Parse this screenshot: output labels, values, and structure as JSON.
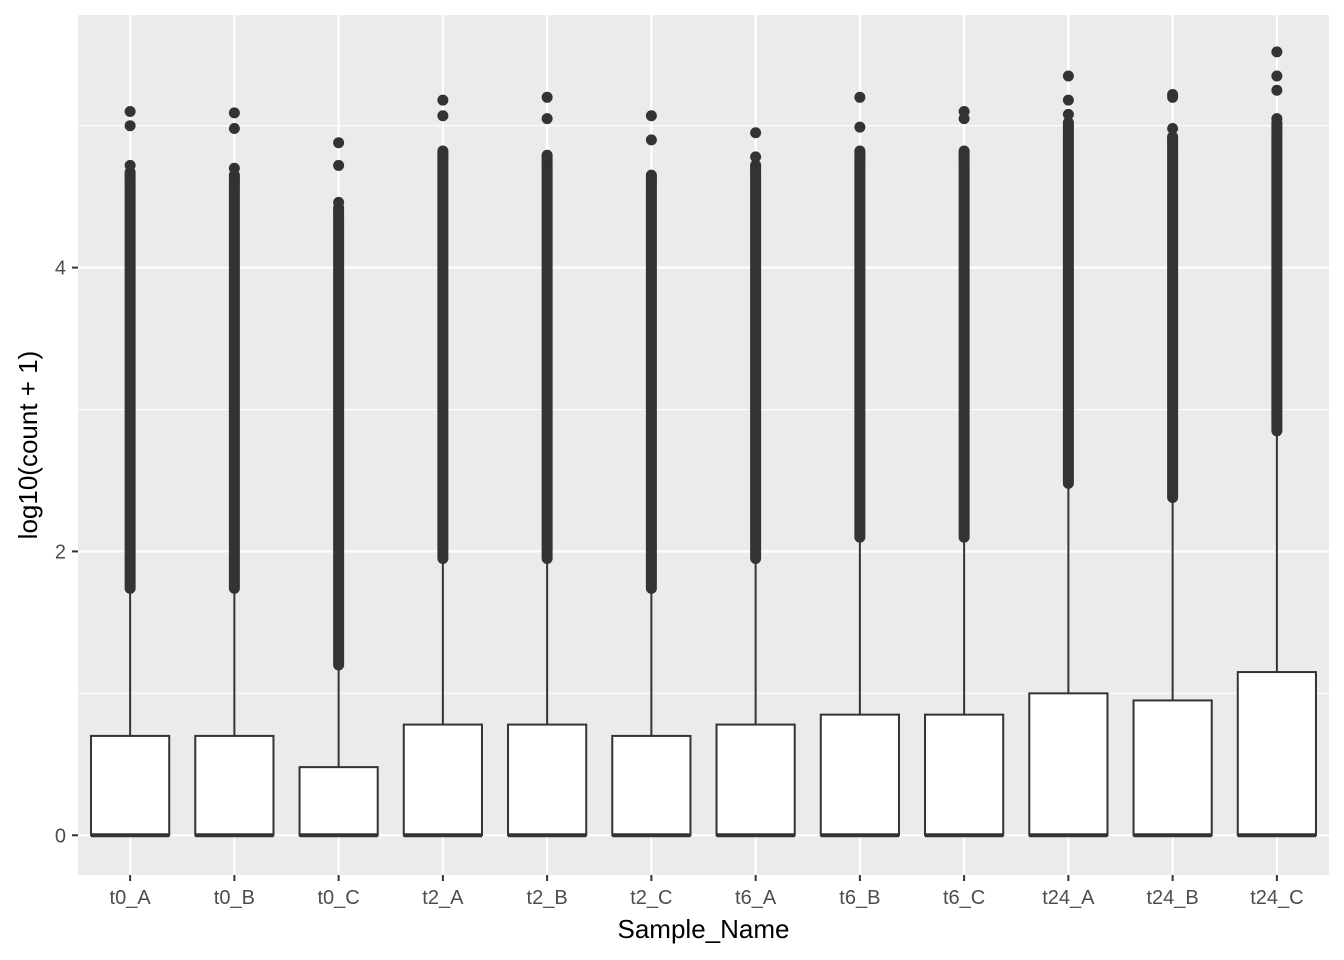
{
  "chart_data": {
    "type": "boxplot",
    "xlabel": "Sample_Name",
    "ylabel": "log10(count + 1)",
    "ylim": [
      -0.28,
      5.78
    ],
    "yticks": [
      0,
      2,
      4
    ],
    "grid": true,
    "legend": "none",
    "colors": {
      "panel": "#ebebeb",
      "grid": "#ffffff",
      "box_fill": "#ffffff",
      "stroke": "#333333",
      "outlier": "#333333"
    },
    "categories": [
      "t0_A",
      "t0_B",
      "t0_C",
      "t2_A",
      "t2_B",
      "t2_C",
      "t6_A",
      "t6_B",
      "t6_C",
      "t24_A",
      "t24_B",
      "t24_C"
    ],
    "boxes": [
      {
        "name": "t0_A",
        "min": 0,
        "q1": 0,
        "median": 0,
        "q3": 0.7,
        "whisker_high": 1.74,
        "outlier_band": [
          1.74,
          4.6
        ],
        "outliers": [
          4.72,
          5.0,
          5.1
        ]
      },
      {
        "name": "t0_B",
        "min": 0,
        "q1": 0,
        "median": 0,
        "q3": 0.7,
        "whisker_high": 1.74,
        "outlier_band": [
          1.74,
          4.58
        ],
        "outliers": [
          4.7,
          4.98,
          5.09
        ]
      },
      {
        "name": "t0_C",
        "min": 0,
        "q1": 0,
        "median": 0,
        "q3": 0.48,
        "whisker_high": 1.2,
        "outlier_band": [
          1.2,
          4.35
        ],
        "outliers": [
          4.46,
          4.72,
          4.88
        ]
      },
      {
        "name": "t2_A",
        "min": 0,
        "q1": 0,
        "median": 0,
        "q3": 0.78,
        "whisker_high": 1.95,
        "outlier_band": [
          1.95,
          4.75
        ],
        "outliers": [
          5.07,
          5.18
        ]
      },
      {
        "name": "t2_B",
        "min": 0,
        "q1": 0,
        "median": 0,
        "q3": 0.78,
        "whisker_high": 1.95,
        "outlier_band": [
          1.95,
          4.72
        ],
        "outliers": [
          5.05,
          5.2
        ]
      },
      {
        "name": "t2_C",
        "min": 0,
        "q1": 0,
        "median": 0,
        "q3": 0.7,
        "whisker_high": 1.74,
        "outlier_band": [
          1.74,
          4.58
        ],
        "outliers": [
          4.9,
          5.07
        ]
      },
      {
        "name": "t6_A",
        "min": 0,
        "q1": 0,
        "median": 0,
        "q3": 0.78,
        "whisker_high": 1.95,
        "outlier_band": [
          1.95,
          4.65
        ],
        "outliers": [
          4.78,
          4.95
        ]
      },
      {
        "name": "t6_B",
        "min": 0,
        "q1": 0,
        "median": 0,
        "q3": 0.85,
        "whisker_high": 2.1,
        "outlier_band": [
          2.1,
          4.75
        ],
        "outliers": [
          4.99,
          5.2
        ]
      },
      {
        "name": "t6_C",
        "min": 0,
        "q1": 0,
        "median": 0,
        "q3": 0.85,
        "whisker_high": 2.1,
        "outlier_band": [
          2.1,
          4.75
        ],
        "outliers": [
          5.05,
          5.1
        ]
      },
      {
        "name": "t24_A",
        "min": 0,
        "q1": 0,
        "median": 0,
        "q3": 1.0,
        "whisker_high": 2.48,
        "outlier_band": [
          2.48,
          4.95
        ],
        "outliers": [
          5.08,
          5.18,
          5.35
        ]
      },
      {
        "name": "t24_B",
        "min": 0,
        "q1": 0,
        "median": 0,
        "q3": 0.95,
        "whisker_high": 2.38,
        "outlier_band": [
          2.38,
          4.85
        ],
        "outliers": [
          4.98,
          5.2,
          5.22
        ]
      },
      {
        "name": "t24_C",
        "min": 0,
        "q1": 0,
        "median": 0,
        "q3": 1.15,
        "whisker_high": 2.85,
        "outlier_band": [
          2.85,
          4.95
        ],
        "outliers": [
          5.05,
          5.25,
          5.35,
          5.52
        ]
      }
    ]
  }
}
